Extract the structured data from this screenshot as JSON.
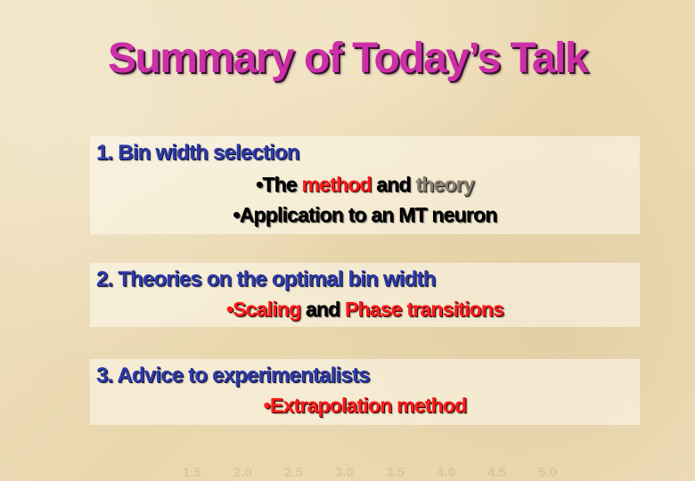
{
  "slide": {
    "title": "Summary of Today’s Talk",
    "sections": [
      {
        "heading": "1.  Bin width selection",
        "bullets": [
          {
            "bullet_mark": "•",
            "parts": [
              "The ",
              "method",
              " and ",
              "theory"
            ]
          },
          {
            "bullet_mark": "•",
            "parts": [
              "Application to an MT neuron"
            ]
          }
        ]
      },
      {
        "heading": "2.  Theories on the optimal bin width",
        "bullets": [
          {
            "bullet_mark": "•",
            "parts": [
              "Scaling",
              " and ",
              "Phase transitions"
            ]
          }
        ]
      },
      {
        "heading": "3.  Advice to experimentalists",
        "bullets": [
          {
            "bullet_mark": "•",
            "parts": [
              "Extrapolation method"
            ]
          }
        ]
      }
    ],
    "background_axis_ticks": [
      "1.5",
      "2.0",
      "2.5",
      "3.0",
      "3.5",
      "4.0",
      "4.5",
      "5.0"
    ]
  },
  "colors": {
    "title": "#cc2fa7",
    "heading": "#2e3aa8",
    "emphasis": "#ff1b1b",
    "muted": "#8d8070",
    "background": "#eedfba"
  }
}
